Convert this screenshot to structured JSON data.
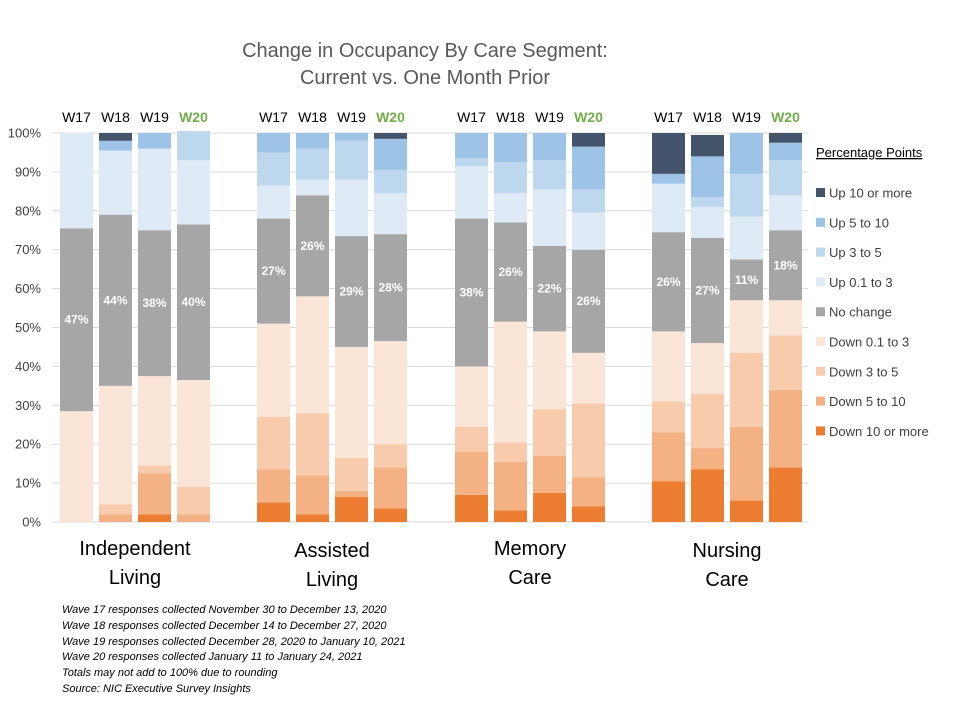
{
  "chart_data": {
    "type": "bar",
    "stacked": true,
    "title_lines": [
      "Change in Occupancy By Care Segment:",
      "Current vs. One Month Prior"
    ],
    "y_ticks": [
      "0%",
      "10%",
      "20%",
      "30%",
      "40%",
      "50%",
      "60%",
      "70%",
      "80%",
      "90%",
      "100%"
    ],
    "ylim": [
      0,
      100
    ],
    "grid": true,
    "legend_title": "Percentage Points",
    "legend_position": "right",
    "highlight_wave": "W20",
    "highlight_color": "#70ad47",
    "series": [
      {
        "name": "Down 10 or more",
        "color": "#ed7d31"
      },
      {
        "name": "Down 5 to 10",
        "color": "#f4b183"
      },
      {
        "name": "Down 3 to 5",
        "color": "#f8cbad"
      },
      {
        "name": "Down 0.1 to 3",
        "color": "#fbe5d6"
      },
      {
        "name": "No change",
        "color": "#a6a6a6"
      },
      {
        "name": "Up 0.1 to 3",
        "color": "#deebf7"
      },
      {
        "name": "Up 3 to 5",
        "color": "#bdd7ee"
      },
      {
        "name": "Up 5 to 10",
        "color": "#9dc3e6"
      },
      {
        "name": "Up 10 or more",
        "color": "#44546a"
      }
    ],
    "groups": [
      {
        "name_lines": [
          "Independent",
          "Living"
        ],
        "bars": [
          {
            "wave": "W17",
            "values": [
              0,
              0,
              0,
              28.5,
              47,
              24.5,
              0,
              0,
              0
            ],
            "label": "47%"
          },
          {
            "wave": "W18",
            "values": [
              0,
              2,
              2.5,
              30.5,
              44,
              16.5,
              0,
              2.5,
              2
            ],
            "label": "44%"
          },
          {
            "wave": "W19",
            "values": [
              2,
              10.5,
              2,
              23,
              37.5,
              21,
              0,
              4,
              0
            ],
            "label": "38%"
          },
          {
            "wave": "W20",
            "values": [
              0,
              2,
              7,
              27.5,
              40,
              16.5,
              7.5,
              0,
              0
            ],
            "label": "40%"
          }
        ]
      },
      {
        "name_lines": [
          "Assisted",
          "Living"
        ],
        "bars": [
          {
            "wave": "W17",
            "values": [
              5,
              8.5,
              13.5,
              24,
              27,
              8.5,
              8.5,
              5,
              0
            ],
            "label": "27%"
          },
          {
            "wave": "W18",
            "values": [
              2,
              10,
              16,
              30,
              26,
              4,
              8,
              4,
              0
            ],
            "label": "26%"
          },
          {
            "wave": "W19",
            "values": [
              6.5,
              1.5,
              8.5,
              28.5,
              28.5,
              14.5,
              10,
              2,
              0
            ],
            "label": "29%"
          },
          {
            "wave": "W20",
            "values": [
              3.5,
              10.5,
              6,
              26.5,
              27.5,
              10.5,
              6,
              8,
              1.5
            ],
            "label": "28%"
          }
        ]
      },
      {
        "name_lines": [
          "Memory",
          "Care"
        ],
        "bars": [
          {
            "wave": "W17",
            "values": [
              7,
              11,
              6.5,
              15.5,
              38,
              13.5,
              2,
              6.5,
              0
            ],
            "label": "38%"
          },
          {
            "wave": "W18",
            "values": [
              3,
              12.5,
              5,
              31,
              25.5,
              7.5,
              8,
              7.5,
              0
            ],
            "label": "26%"
          },
          {
            "wave": "W19",
            "values": [
              7.5,
              9.5,
              12,
              20,
              22,
              14.5,
              7.5,
              7,
              0
            ],
            "label": "22%"
          },
          {
            "wave": "W20",
            "values": [
              4,
              7.5,
              19,
              13,
              26.5,
              9.5,
              6,
              11,
              3.5
            ],
            "label": "26%"
          }
        ]
      },
      {
        "name_lines": [
          "Nursing",
          "Care"
        ],
        "bars": [
          {
            "wave": "W17",
            "values": [
              10.5,
              12.5,
              8,
              18,
              25.5,
              12.5,
              0,
              2.5,
              10.5
            ],
            "label": "26%"
          },
          {
            "wave": "W18",
            "values": [
              13.5,
              5.5,
              14,
              13,
              27,
              8,
              2.5,
              10.5,
              5.5
            ],
            "label": "27%"
          },
          {
            "wave": "W19",
            "values": [
              5.5,
              19,
              19,
              13.5,
              10.5,
              11,
              11,
              10.5,
              0
            ],
            "label": "11%"
          },
          {
            "wave": "W20",
            "values": [
              14,
              20,
              14,
              9,
              18,
              9,
              9,
              4.5,
              2.5
            ],
            "label": "18%"
          }
        ]
      }
    ]
  },
  "notes": [
    "Wave 17 responses collected  November 30 to December 13, 2020",
    "Wave 18 responses collected  December 14 to December 27, 2020",
    "Wave 19 responses collected  December 28, 2020 to January 10, 2021",
    "Wave 20 responses collected  January 11 to January 24, 2021",
    "Totals may not add to 100% due to rounding",
    "Source: NIC Executive Survey Insights"
  ]
}
